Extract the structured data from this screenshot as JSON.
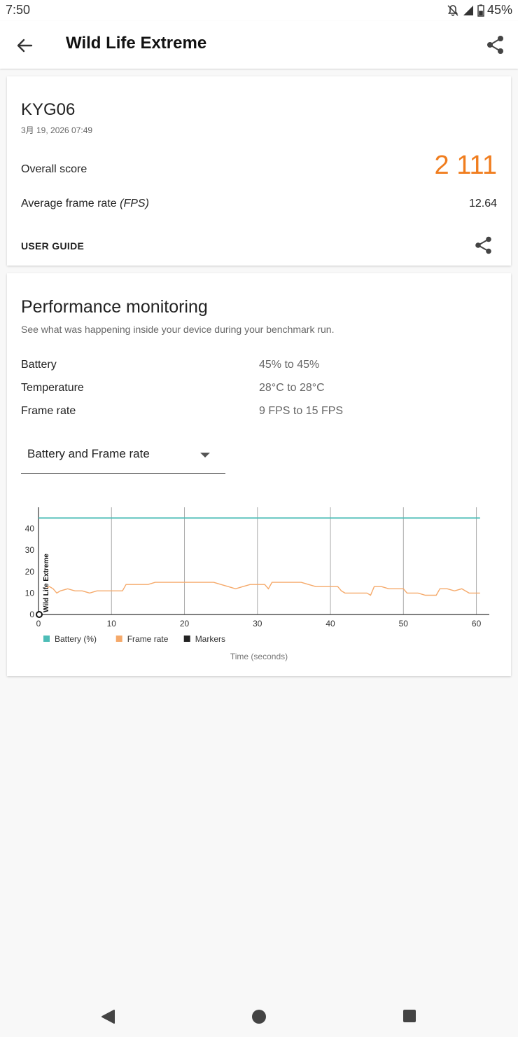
{
  "status_bar": {
    "time": "7:50",
    "battery_level": "45%",
    "icons": [
      "mute-icon",
      "signal-icon",
      "battery-icon"
    ]
  },
  "app_bar": {
    "title": "Wild Life Extreme",
    "back_icon": "back-arrow-icon",
    "share_icon": "share-icon"
  },
  "result": {
    "device": "KYG06",
    "date": "3月 19, 2026 07:49",
    "overall_label": "Overall score",
    "overall_value": "2 111",
    "fps_label": "Average frame rate",
    "fps_unit": "(FPS)",
    "fps_value": "12.64",
    "user_guide": "USER GUIDE",
    "accent_color": "#f07d1e"
  },
  "performance": {
    "title": "Performance monitoring",
    "subtitle": "See what was happening inside your device during your benchmark run.",
    "stats": [
      {
        "label": "Battery",
        "value": "45% to 45%"
      },
      {
        "label": "Temperature",
        "value": "28°C to 28°C"
      },
      {
        "label": "Frame rate",
        "value": "9 FPS to 15 FPS"
      }
    ],
    "dropdown_selected": "Battery and Frame rate"
  },
  "chart_data": {
    "type": "line",
    "xlabel": "Time (seconds)",
    "ylabel": "",
    "xlim": [
      0,
      61
    ],
    "ylim": [
      0,
      50
    ],
    "x_ticks": [
      "0",
      "10",
      "20",
      "30",
      "40",
      "50",
      "60"
    ],
    "y_ticks": [
      "0",
      "10",
      "20",
      "30",
      "40"
    ],
    "marker_label": "Wild Life Extreme",
    "marker_x": 0,
    "grid": "vertical",
    "legend_placement": "bottom-left",
    "series": [
      {
        "name": "Battery (%)",
        "color": "#4dbdb7",
        "x": [
          0,
          60.5
        ],
        "y": [
          45,
          45
        ]
      },
      {
        "name": "Frame rate",
        "color": "#f5a96a",
        "x": [
          1,
          1.5,
          2,
          2.5,
          3,
          4,
          5,
          6,
          7,
          8,
          9,
          10,
          11.5,
          12,
          13,
          14,
          15,
          16,
          17,
          18,
          19,
          20,
          21,
          22,
          23,
          24,
          25,
          26,
          27,
          28,
          29,
          30,
          31,
          31.5,
          32,
          33,
          34,
          35,
          36,
          37,
          38,
          39,
          40,
          41,
          41.5,
          42,
          43,
          44,
          45,
          45.5,
          46,
          47,
          48,
          49,
          50,
          50.5,
          51,
          52,
          53,
          54,
          54.5,
          55,
          56,
          57,
          58,
          59,
          60,
          60.5
        ],
        "y": [
          12,
          13,
          12,
          10,
          11,
          12,
          11,
          11,
          10,
          11,
          11,
          11,
          11,
          14,
          14,
          14,
          14,
          15,
          15,
          15,
          15,
          15,
          15,
          15,
          15,
          15,
          14,
          13,
          12,
          13,
          14,
          14,
          14,
          12,
          15,
          15,
          15,
          15,
          15,
          14,
          13,
          13,
          13,
          13,
          11,
          10,
          10,
          10,
          10,
          9,
          13,
          13,
          12,
          12,
          12,
          10,
          10,
          10,
          9,
          9,
          9,
          12,
          12,
          11,
          12,
          10,
          10,
          10
        ]
      },
      {
        "name": "Markers",
        "color": "#222222",
        "x": [],
        "y": []
      }
    ]
  },
  "nav_bar": {
    "icons": [
      "nav-back-icon",
      "home-icon",
      "recents-icon"
    ]
  }
}
